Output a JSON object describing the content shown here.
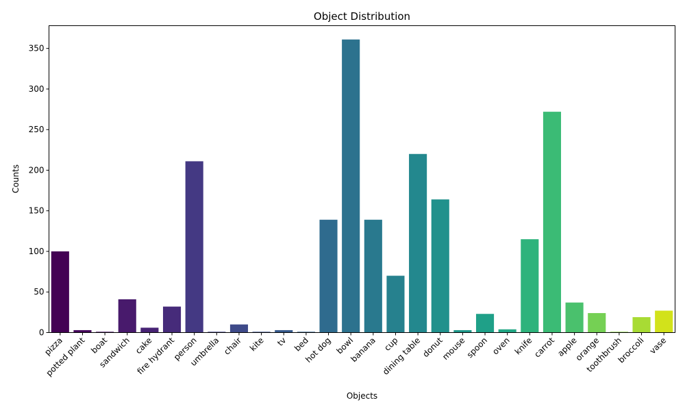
{
  "chart_data": {
    "type": "bar",
    "title": "Object Distribution",
    "xlabel": "Objects",
    "ylabel": "Counts",
    "ylim": [
      0,
      378
    ],
    "yticks": [
      0,
      50,
      100,
      150,
      200,
      250,
      300,
      350
    ],
    "grid": false,
    "legend": "none",
    "colormap": "viridis",
    "categories": [
      "pizza",
      "potted plant",
      "boat",
      "sandwich",
      "cake",
      "fire hydrant",
      "person",
      "umbrella",
      "chair",
      "kite",
      "tv",
      "bed",
      "hot dog",
      "bowl",
      "banana",
      "cup",
      "dining table",
      "donut",
      "mouse",
      "spoon",
      "oven",
      "knife",
      "carrot",
      "apple",
      "orange",
      "toothbrush",
      "broccoli",
      "vase"
    ],
    "values": [
      100,
      3,
      1,
      41,
      6,
      32,
      211,
      1,
      10,
      1,
      3,
      1,
      139,
      361,
      139,
      70,
      220,
      164,
      3,
      23,
      4,
      115,
      272,
      37,
      24,
      1,
      19,
      27
    ],
    "colors": [
      "#440154",
      "#46085c",
      "#471164",
      "#481a6c",
      "#472374",
      "#462b7a",
      "#443983",
      "#414287",
      "#3e4a89",
      "#3b528b",
      "#375a8c",
      "#33628d",
      "#2f6b8e",
      "#2c728e",
      "#29798e",
      "#26818e",
      "#23888e",
      "#21918c",
      "#1f988b",
      "#1fa088",
      "#22a785",
      "#2eb37c",
      "#3bbb75",
      "#4ac16d",
      "#75d054",
      "#8ed645",
      "#a8db34",
      "#d2e21b"
    ]
  }
}
